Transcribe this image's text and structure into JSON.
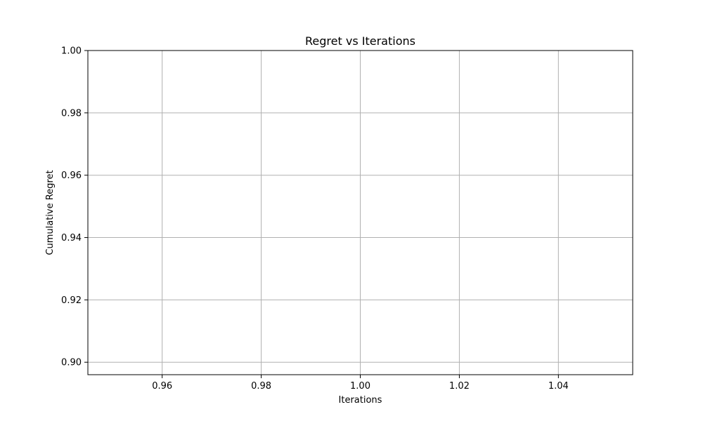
{
  "chart_data": {
    "type": "line",
    "title": "Regret vs Iterations",
    "xlabel": "Iterations",
    "ylabel": "Cumulative Regret",
    "xlim": [
      0.945,
      1.055
    ],
    "ylim": [
      0.896,
      1.0
    ],
    "x_ticks": [
      0.96,
      0.98,
      1.0,
      1.02,
      1.04
    ],
    "x_tick_labels": [
      "0.96",
      "0.98",
      "1.00",
      "1.02",
      "1.04"
    ],
    "y_ticks": [
      0.9,
      0.92,
      0.94,
      0.96,
      0.98,
      1.0
    ],
    "y_tick_labels": [
      "0.90",
      "0.92",
      "0.94",
      "0.96",
      "0.98",
      "1.00"
    ],
    "grid": true,
    "series": []
  },
  "colors": {
    "grid": "#b0b0b0",
    "axes": "#000000",
    "background": "#ffffff"
  }
}
